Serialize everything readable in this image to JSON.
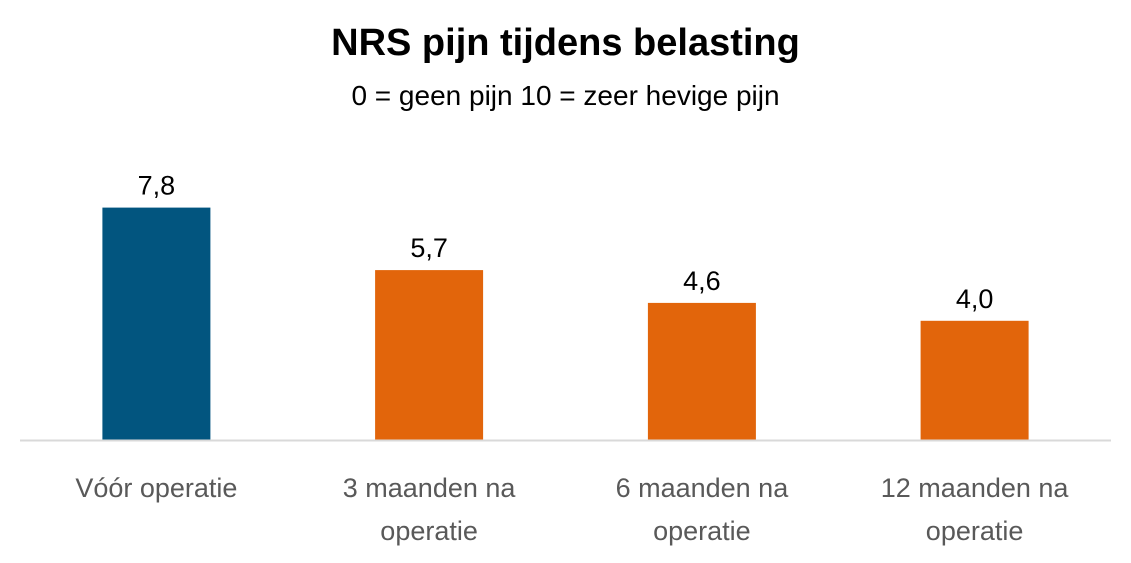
{
  "chart_data": {
    "type": "bar",
    "title": "NRS pijn tijdens belasting",
    "subtitle": "0 = geen pijn  10 = zeer hevige pijn",
    "categories": [
      [
        "Vóór operatie"
      ],
      [
        "3 maanden na",
        "operatie"
      ],
      [
        "6 maanden na",
        "operatie"
      ],
      [
        "12 maanden na",
        "operatie"
      ]
    ],
    "values": [
      7.8,
      5.7,
      4.6,
      4.0
    ],
    "value_labels": [
      "7,8",
      "5,7",
      "4,6",
      "4,0"
    ],
    "bar_colors": [
      "#02557f",
      "#e2650b",
      "#e2650b",
      "#e2650b"
    ],
    "axis_color": "#d9d9d9",
    "label_color": "#595959",
    "ylim": [
      0,
      10
    ],
    "grid": false,
    "legend": "none"
  }
}
